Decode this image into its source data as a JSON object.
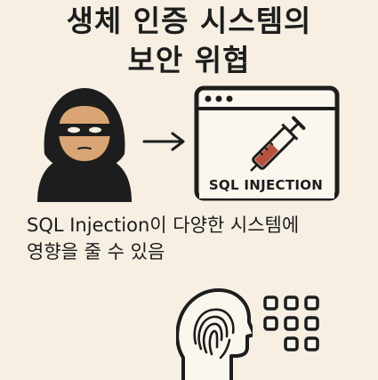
{
  "title": {
    "line1": "생체 인증 시스템의",
    "line2": "보안 위협"
  },
  "browser": {
    "label": "SQL INJECTION"
  },
  "caption": {
    "line1": "SQL Injection이 다양한 시스템에",
    "line2": "영향을 줄 수 있음"
  },
  "colors": {
    "background": "#f6efe2",
    "ink": "#1d1d1d",
    "skin": "#d9a574",
    "syringe_fluid": "#b8513d"
  },
  "icons": [
    "hacker-icon",
    "arrow-right-icon",
    "browser-window-icon",
    "syringe-icon",
    "fingerprint-head-icon",
    "keypad-icon"
  ]
}
